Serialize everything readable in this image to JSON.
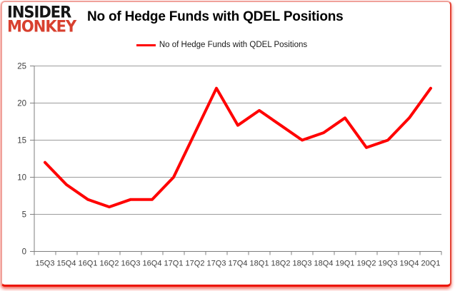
{
  "logo": {
    "line1": "INSIDER",
    "line2": "MONKEY"
  },
  "header": {
    "title": "No of Hedge Funds with QDEL Positions"
  },
  "legend": {
    "label": "No of Hedge Funds with QDEL Positions"
  },
  "chart_data": {
    "type": "line",
    "title": "No of Hedge Funds with QDEL Positions",
    "categories": [
      "15Q3",
      "15Q4",
      "16Q1",
      "16Q2",
      "16Q3",
      "16Q4",
      "17Q1",
      "17Q2",
      "17Q3",
      "17Q4",
      "18Q1",
      "18Q2",
      "18Q3",
      "18Q4",
      "19Q1",
      "19Q2",
      "19Q3",
      "19Q4",
      "20Q1"
    ],
    "series": [
      {
        "name": "No of Hedge Funds with QDEL Positions",
        "color": "#ff0000",
        "values": [
          12,
          9,
          7,
          6,
          7,
          7,
          10,
          16,
          22,
          17,
          19,
          17,
          15,
          16,
          18,
          14,
          15,
          18,
          22
        ]
      }
    ],
    "ylim": [
      0,
      25
    ],
    "yticks": [
      0,
      5,
      10,
      15,
      20,
      25
    ],
    "grid": true,
    "legend_position": "top-center"
  },
  "colors": {
    "series_red": "#ff0000",
    "grid": "#9c9c9c",
    "axis": "#7f7f7f",
    "tick_label": "#3f3f3f",
    "logo_black": "#151515",
    "logo_red": "#d8402f",
    "frame_border": "#f0a19a",
    "frame_accent": "#ec1505"
  }
}
